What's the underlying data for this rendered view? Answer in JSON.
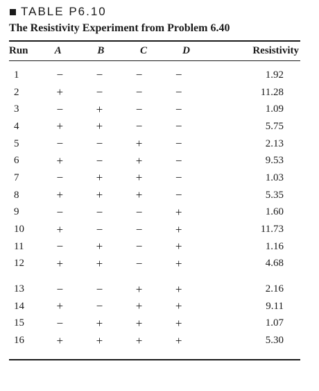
{
  "label": "TABLE P6.10",
  "title": "The Resistivity Experiment from Problem 6.40",
  "headers": [
    "Run",
    "A",
    "B",
    "C",
    "D",
    "Resistivity"
  ],
  "rows": [
    {
      "run": "1",
      "a": "−",
      "b": "−",
      "c": "−",
      "d": "−",
      "res": "1.92"
    },
    {
      "run": "2",
      "a": "+",
      "b": "−",
      "c": "−",
      "d": "−",
      "res": "11.28"
    },
    {
      "run": "3",
      "a": "−",
      "b": "+",
      "c": "−",
      "d": "−",
      "res": "1.09"
    },
    {
      "run": "4",
      "a": "+",
      "b": "+",
      "c": "−",
      "d": "−",
      "res": "5.75"
    },
    {
      "run": "5",
      "a": "−",
      "b": "−",
      "c": "+",
      "d": "−",
      "res": "2.13"
    },
    {
      "run": "6",
      "a": "+",
      "b": "−",
      "c": "+",
      "d": "−",
      "res": "9.53"
    },
    {
      "run": "7",
      "a": "−",
      "b": "+",
      "c": "+",
      "d": "−",
      "res": "1.03"
    },
    {
      "run": "8",
      "a": "+",
      "b": "+",
      "c": "+",
      "d": "−",
      "res": "5.35"
    },
    {
      "run": "9",
      "a": "−",
      "b": "−",
      "c": "−",
      "d": "+",
      "res": "1.60"
    },
    {
      "run": "10",
      "a": "+",
      "b": "−",
      "c": "−",
      "d": "+",
      "res": "11.73"
    },
    {
      "run": "11",
      "a": "−",
      "b": "+",
      "c": "−",
      "d": "+",
      "res": "1.16"
    },
    {
      "run": "12",
      "a": "+",
      "b": "+",
      "c": "−",
      "d": "+",
      "res": "4.68"
    },
    {
      "run": "13",
      "a": "−",
      "b": "−",
      "c": "+",
      "d": "+",
      "res": "2.16"
    },
    {
      "run": "14",
      "a": "+",
      "b": "−",
      "c": "+",
      "d": "+",
      "res": "9.11"
    },
    {
      "run": "15",
      "a": "−",
      "b": "+",
      "c": "+",
      "d": "+",
      "res": "1.07"
    },
    {
      "run": "16",
      "a": "+",
      "b": "+",
      "c": "+",
      "d": "+",
      "res": "5.30"
    }
  ]
}
